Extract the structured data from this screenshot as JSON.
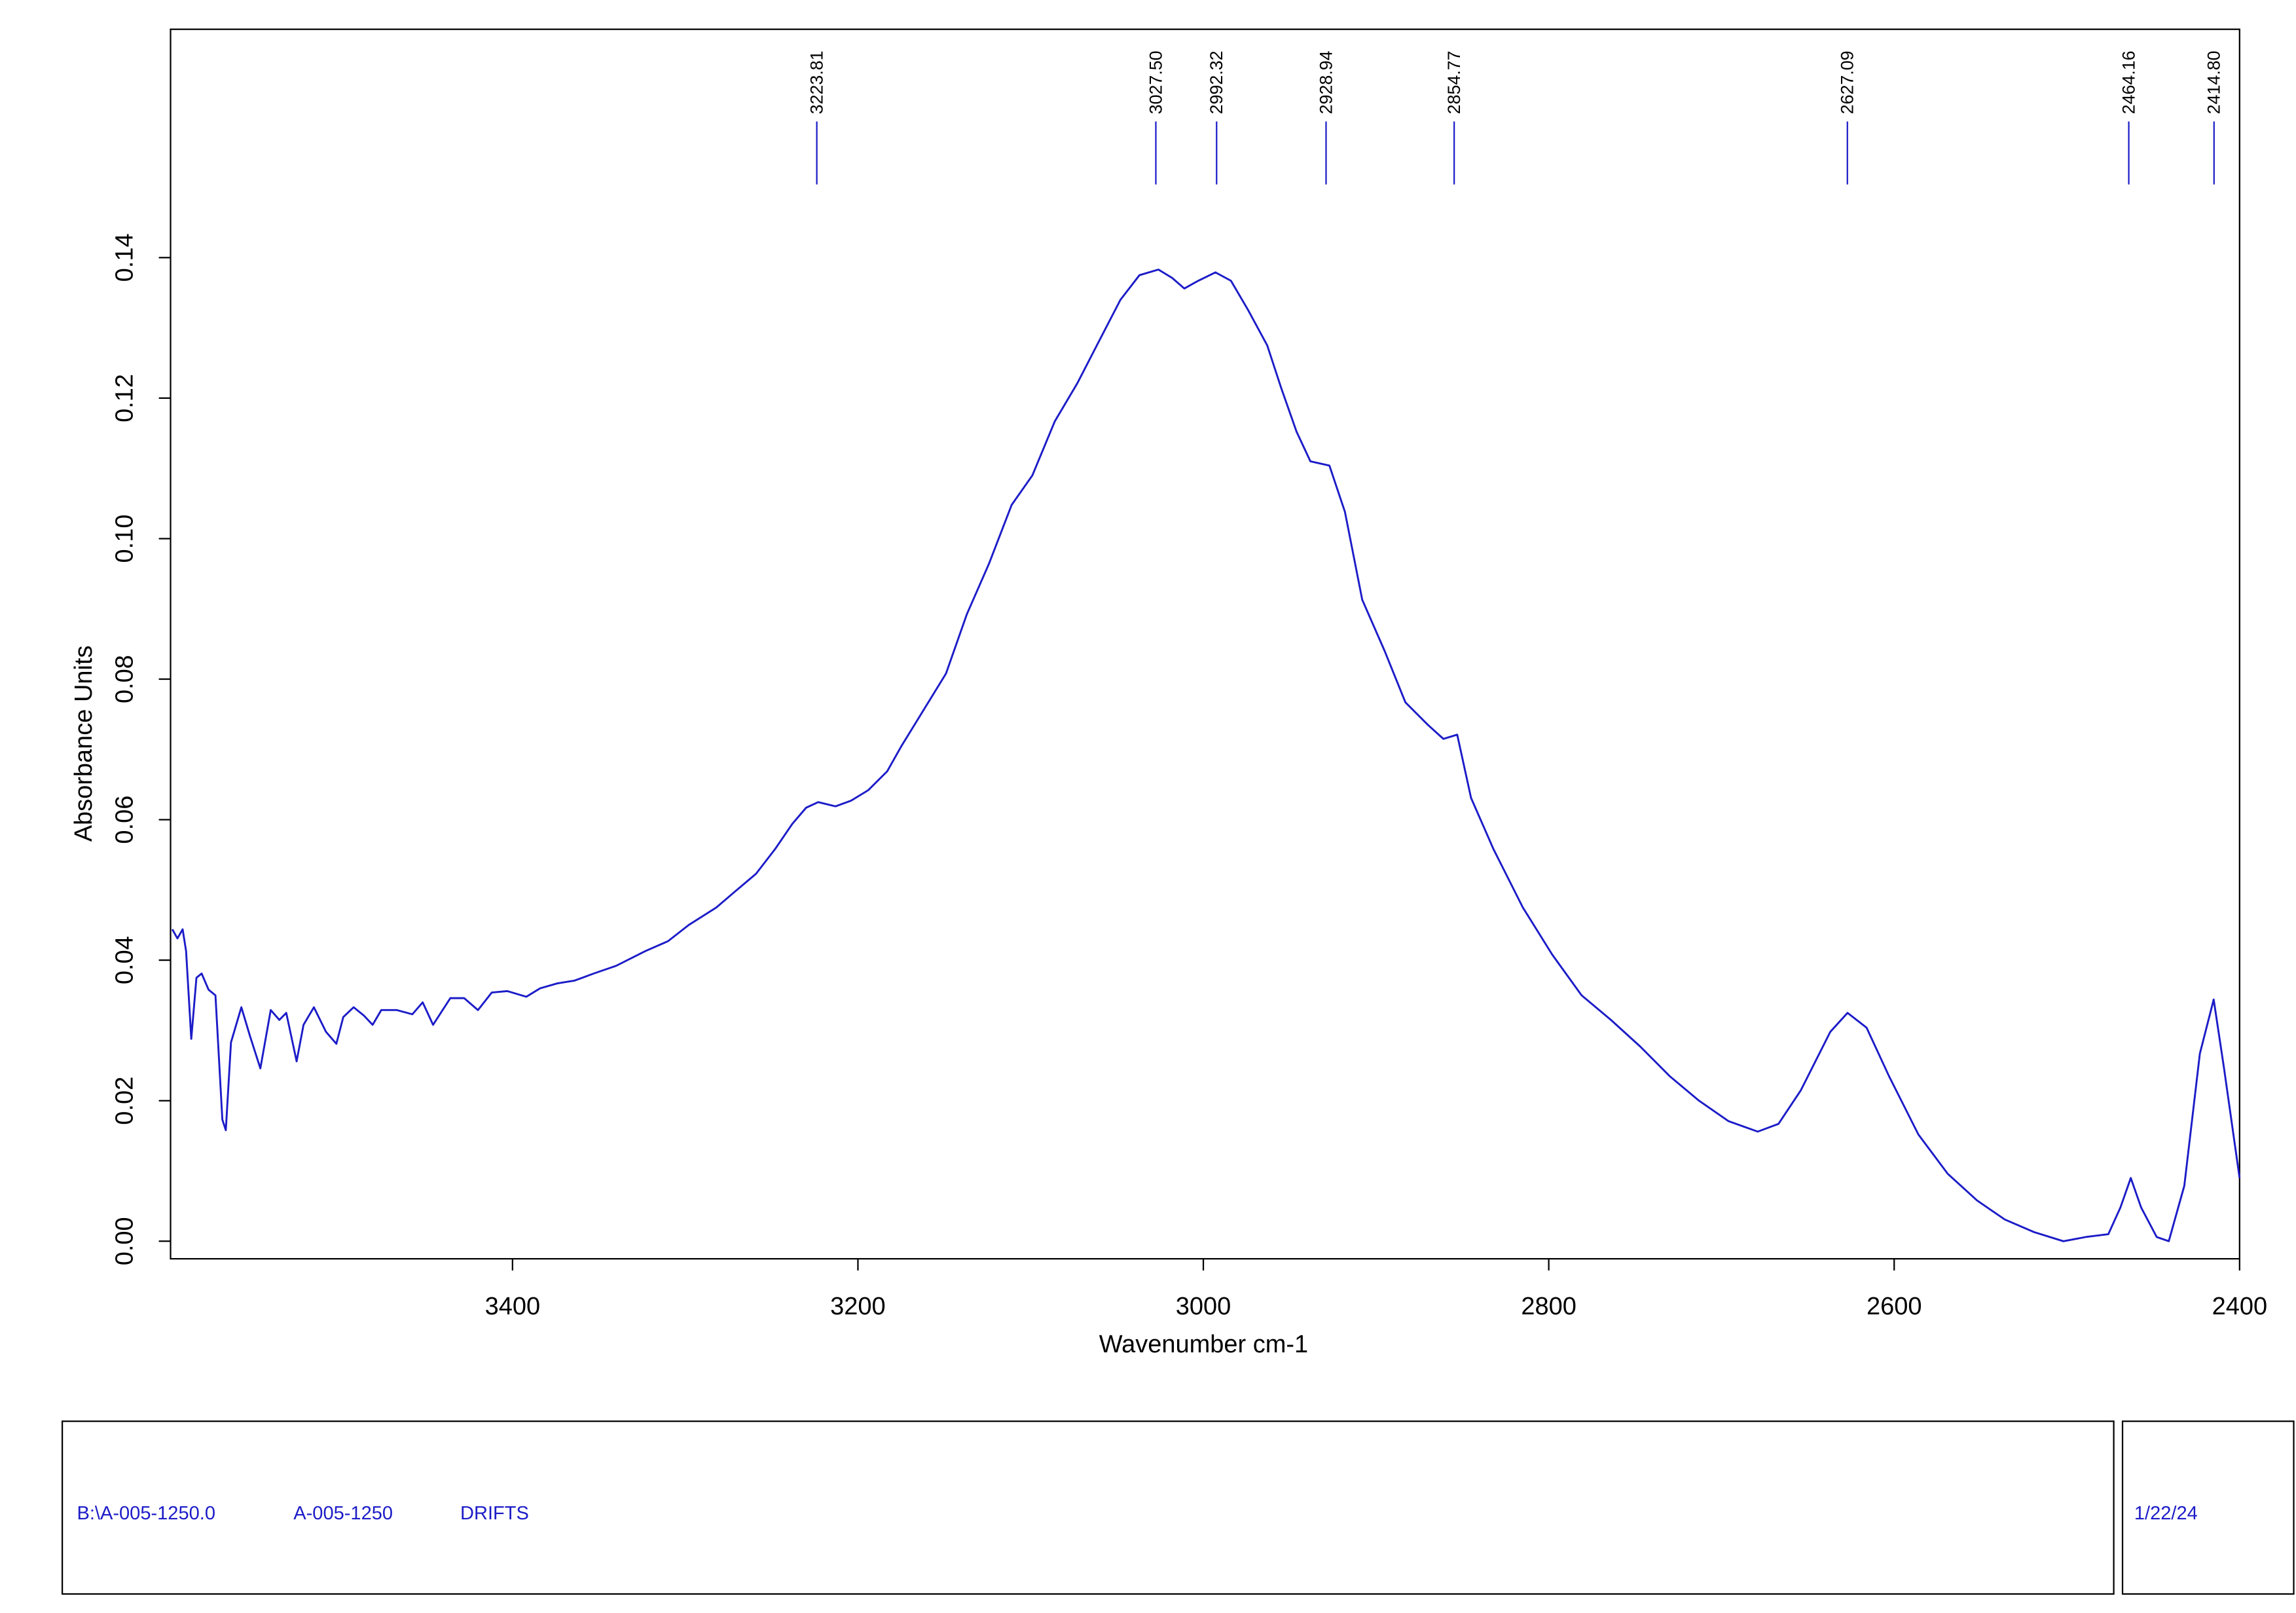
{
  "chart_data": {
    "type": "line",
    "xlabel": "Wavenumber cm-1",
    "ylabel": "Absorbance Units",
    "color": "#1c1cc8",
    "xlim": [
      3598,
      2400
    ],
    "ylim": [
      -0.0025,
      0.1725
    ],
    "xticks": [
      3400,
      3200,
      3000,
      2800,
      2600,
      2400
    ],
    "yticks": [
      {
        "value": 0,
        "label": "0.00"
      },
      0.02,
      0.04,
      0.06,
      0.08,
      {
        "value": 0.1,
        "label": "0.10"
      },
      0.12,
      0.14
    ],
    "peaks": [
      3223.81,
      3027.5,
      2992.32,
      2928.94,
      2854.77,
      2627.09,
      2464.16,
      2414.8
    ],
    "peak_labels": [
      "3223.81",
      "3027.50",
      "2992.32",
      "2928.94",
      "2854.77",
      "2627.09",
      "2464.16",
      "2414.80"
    ],
    "x": [
      3597,
      3594,
      3591,
      3589,
      3586,
      3583,
      3580,
      3576,
      3572,
      3568,
      3566,
      3563,
      3557,
      3552,
      3546,
      3540,
      3535,
      3531,
      3525,
      3521,
      3515,
      3508,
      3502,
      3498,
      3492,
      3486,
      3481,
      3476,
      3467,
      3458,
      3452,
      3446,
      3436,
      3428,
      3420,
      3412,
      3403,
      3392,
      3384,
      3374,
      3364,
      3353,
      3340,
      3323,
      3310,
      3298,
      3282,
      3272,
      3259,
      3248,
      3238,
      3230,
      3223,
      3213,
      3204,
      3194,
      3183,
      3175,
      3162,
      3149,
      3137,
      3124,
      3111,
      3099,
      3086,
      3073,
      3060,
      3048,
      3037,
      3026,
      3018,
      3011,
      3003,
      2993,
      2984,
      2974,
      2963,
      2955,
      2946,
      2938,
      2927,
      2918,
      2908,
      2895,
      2883,
      2870,
      2861,
      2853,
      2845,
      2832,
      2815,
      2798,
      2781,
      2764,
      2747,
      2730,
      2713,
      2696,
      2679,
      2667,
      2654,
      2637,
      2627,
      2616,
      2603,
      2586,
      2569,
      2552,
      2536,
      2519,
      2502,
      2489,
      2476,
      2469,
      2463,
      2457,
      2448,
      2441,
      2432,
      2423,
      2415,
      2409,
      2400
    ],
    "values": [
      0.0444,
      0.0431,
      0.0444,
      0.0413,
      0.0288,
      0.0375,
      0.0381,
      0.0358,
      0.035,
      0.0173,
      0.0158,
      0.0283,
      0.0333,
      0.0292,
      0.0246,
      0.0329,
      0.0315,
      0.0325,
      0.0256,
      0.0308,
      0.0333,
      0.0298,
      0.0281,
      0.0319,
      0.0333,
      0.0321,
      0.0308,
      0.0329,
      0.0329,
      0.0323,
      0.034,
      0.0308,
      0.0346,
      0.0346,
      0.0329,
      0.0354,
      0.0356,
      0.0348,
      0.036,
      0.0367,
      0.0371,
      0.0381,
      0.0392,
      0.0413,
      0.0427,
      0.045,
      0.0475,
      0.0496,
      0.0523,
      0.0558,
      0.0594,
      0.0617,
      0.0625,
      0.0619,
      0.0627,
      0.0642,
      0.0669,
      0.0704,
      0.0756,
      0.0808,
      0.0892,
      0.0965,
      0.1048,
      0.109,
      0.1167,
      0.1221,
      0.1283,
      0.134,
      0.1375,
      0.1383,
      0.1371,
      0.1356,
      0.1367,
      0.1379,
      0.1367,
      0.1325,
      0.1275,
      0.1215,
      0.1152,
      0.111,
      0.1104,
      0.1038,
      0.0913,
      0.084,
      0.0767,
      0.0735,
      0.0715,
      0.0721,
      0.0631,
      0.0558,
      0.0475,
      0.0408,
      0.035,
      0.0315,
      0.0277,
      0.0235,
      0.02,
      0.0171,
      0.0156,
      0.0167,
      0.0215,
      0.0298,
      0.0325,
      0.0304,
      0.0235,
      0.0152,
      0.0096,
      0.0058,
      0.0031,
      0.0013,
      0,
      0.0006,
      0.001,
      0.0048,
      0.009,
      0.0048,
      0.0006,
      0,
      0.0079,
      0.0267,
      0.0344,
      0.0246,
      0.009
    ]
  },
  "footer": {
    "file": "B:\\A-005-1250.0",
    "sample": "A-005-1250",
    "method": "DRIFTS",
    "date": "1/22/24"
  }
}
